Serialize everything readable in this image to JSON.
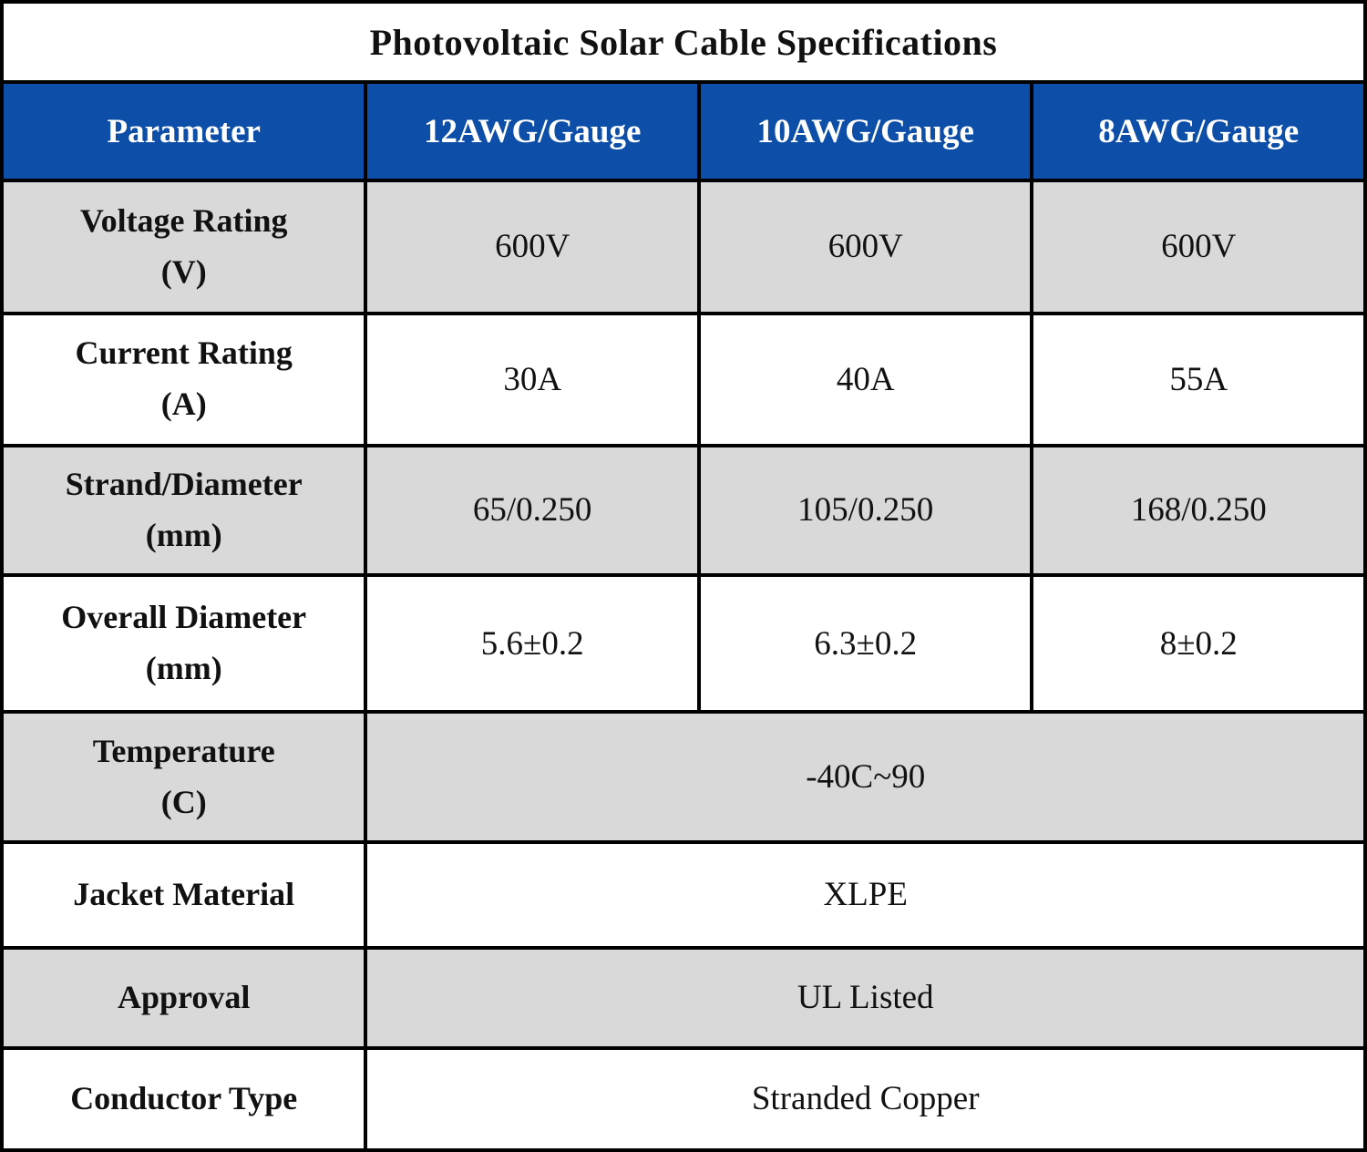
{
  "title": "Photovoltaic Solar Cable Specifications",
  "table": {
    "columns": [
      "Parameter",
      "12AWG/Gauge",
      "10AWG/Gauge",
      "8AWG/Gauge"
    ],
    "rows": [
      {
        "param": "Voltage Rating",
        "unit": "(V)",
        "values": [
          "600V",
          "600V",
          "600V"
        ],
        "shaded": true
      },
      {
        "param": "Current Rating",
        "unit": "(A)",
        "values": [
          "30A",
          "40A",
          "55A"
        ],
        "shaded": false
      },
      {
        "param": "Strand/Diameter",
        "unit": "(mm)",
        "values": [
          "65/0.250",
          "105/0.250",
          "168/0.250"
        ],
        "shaded": true
      },
      {
        "param": "Overall Diameter",
        "unit": "(mm)",
        "values": [
          "5.6±0.2",
          "6.3±0.2",
          "8±0.2"
        ],
        "shaded": false
      },
      {
        "param": "Temperature",
        "unit": "(C)",
        "span_value": "-40C~90",
        "shaded": true
      },
      {
        "param": "Jacket Material",
        "unit": "",
        "span_value": "XLPE",
        "shaded": false
      },
      {
        "param": "Approval",
        "unit": "",
        "span_value": "UL Listed",
        "shaded": true
      },
      {
        "param": "Conductor Type",
        "unit": "",
        "span_value": "Stranded Copper",
        "shaded": false
      }
    ]
  },
  "colors": {
    "header_bg": "#0d4ea8",
    "header_text": "#ffffff",
    "shaded_bg": "#d9d9d9",
    "border": "#000000",
    "text": "#111111"
  }
}
